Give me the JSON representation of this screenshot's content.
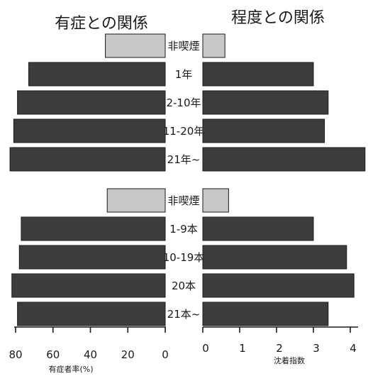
{
  "chart_data": {
    "type": "bar",
    "layout": "butterfly",
    "left_panel": {
      "title": "有症との関係",
      "xlabel": "有症者率(%)",
      "xlim": [
        0,
        80
      ],
      "ticks": [
        "80",
        "60",
        "40",
        "20",
        "0"
      ]
    },
    "right_panel": {
      "title": "程度との関係",
      "xlabel": "沈着指数",
      "xlim": [
        0,
        4
      ],
      "ticks": [
        "0",
        "1",
        "2",
        "3",
        "4"
      ]
    },
    "groups": [
      {
        "categories": [
          "非喫煙",
          "1年",
          "2-10年",
          "11-20年",
          "21年~"
        ],
        "left_values": [
          32,
          73,
          79,
          81,
          83
        ],
        "right_values": [
          0.6,
          3.0,
          3.4,
          3.3,
          4.4
        ]
      },
      {
        "categories": [
          "非喫煙",
          "1-9本",
          "10-19本",
          "20本",
          "21本~"
        ],
        "left_values": [
          31,
          77,
          78,
          82,
          79
        ],
        "right_values": [
          0.7,
          3.0,
          3.9,
          4.1,
          3.4
        ]
      }
    ],
    "colors": {
      "smoker": "#3d3d3d",
      "nonsmoker": "#c8c8c8"
    }
  }
}
